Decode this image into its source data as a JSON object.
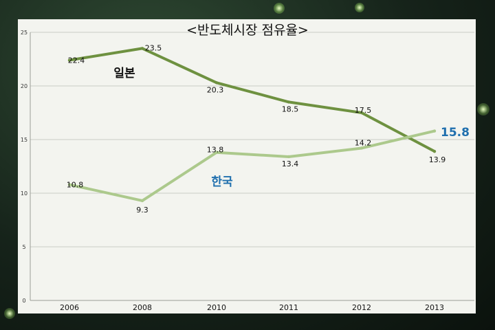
{
  "chart_data": {
    "type": "line",
    "title": "<반도체시장 점유율>",
    "xlabel": "",
    "ylabel": "",
    "categories": [
      "2006",
      "2008",
      "2010",
      "2011",
      "2012",
      "2013"
    ],
    "ylim": [
      0,
      25
    ],
    "yticks": [
      0,
      5,
      10,
      15,
      20,
      25
    ],
    "grid": true,
    "series": [
      {
        "name": "일본",
        "color": "#6e9140",
        "label_color": "#111111",
        "values": [
          22.4,
          23.5,
          20.3,
          18.5,
          17.5,
          13.9
        ],
        "data_labels": [
          "22.4",
          "23.5",
          "20.3",
          "18.5",
          "17.5",
          "13.9"
        ]
      },
      {
        "name": "한국",
        "color": "#acc98c",
        "label_color": "#1f6fae",
        "values": [
          10.8,
          9.3,
          13.8,
          13.4,
          14.2,
          15.8
        ],
        "data_labels": [
          "10.8",
          "9.3",
          "13.8",
          "13.4",
          "14.2",
          "15.8"
        ]
      }
    ]
  }
}
